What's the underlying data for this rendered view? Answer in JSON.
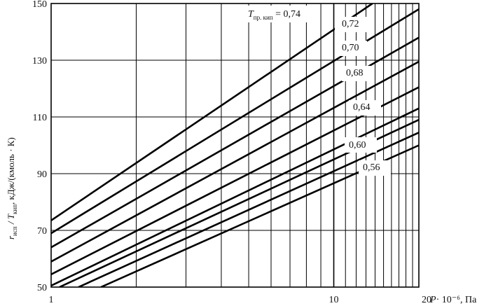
{
  "chart_data": {
    "type": "line",
    "x_scale": "log",
    "xlim": [
      1,
      20
    ],
    "ylim": [
      50,
      150
    ],
    "grid": true,
    "x_ticks": [
      1,
      10,
      20
    ],
    "x_tick_labels": [
      "1",
      "10",
      "20"
    ],
    "y_ticks": [
      50,
      70,
      90,
      110,
      130,
      150
    ],
    "y_tick_labels": [
      "50",
      "70",
      "90",
      "110",
      "130",
      "150"
    ],
    "xlabel_main": "P",
    "xlabel_unit": "· 10⁻⁶, Па",
    "ylabel": {
      "r": "r",
      "r_sub": "исп",
      "slash_t": " / T",
      "t_sub": "кип",
      "unit": ", кДж/(кмоль · К)"
    },
    "legend_title": {
      "t": "T",
      "t_sub": "пр. кип",
      "suffix": " = 0,74"
    },
    "series": [
      {
        "name": "0,74",
        "x": [
          1,
          13.7
        ],
        "y": [
          73.5,
          150
        ]
      },
      {
        "name": "0,72",
        "x": [
          1,
          20
        ],
        "y": [
          69,
          148
        ]
      },
      {
        "name": "0,70",
        "x": [
          1,
          20
        ],
        "y": [
          64,
          138
        ]
      },
      {
        "name": "0,68",
        "x": [
          1,
          20
        ],
        "y": [
          59,
          129.5
        ]
      },
      {
        "name": "",
        "x": [
          1,
          20
        ],
        "y": [
          54.5,
          120.5
        ]
      },
      {
        "name": "0,64",
        "x": [
          1,
          20
        ],
        "y": [
          50.5,
          113
        ]
      },
      {
        "name": "",
        "x": [
          1.07,
          20
        ],
        "y": [
          50,
          109
        ]
      },
      {
        "name": "0,60",
        "x": [
          1.25,
          20
        ],
        "y": [
          50,
          104.5
        ]
      },
      {
        "name": "0,56",
        "x": [
          1.5,
          20
        ],
        "y": [
          50,
          100
        ]
      }
    ],
    "curve_labels": [
      {
        "text": "0,72",
        "series": 1
      },
      {
        "text": "0,70",
        "series": 2
      },
      {
        "text": "0,68",
        "series": 3
      },
      {
        "text": "0,64",
        "series": 5
      },
      {
        "text": "0,60",
        "series": 7
      },
      {
        "text": "0,56",
        "series": 8
      }
    ]
  }
}
